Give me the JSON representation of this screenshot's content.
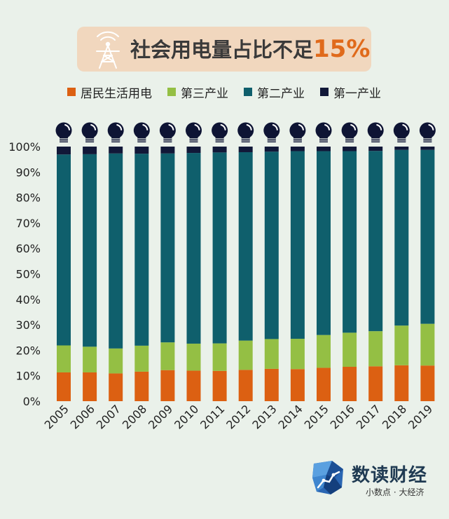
{
  "header": {
    "title_main": "社会用电量占比不足",
    "title_highlight": "15%"
  },
  "colors": {
    "residential": "#dc6012",
    "tertiary": "#94bf44",
    "secondary": "#0f5f6c",
    "primary": "#111838",
    "background": "#eaf1ea",
    "title_bg": "#f1d7be",
    "highlight": "#e06a1b"
  },
  "legend": [
    {
      "label": "居民生活用电",
      "color": "#dc6012"
    },
    {
      "label": "第三产业",
      "color": "#94bf44"
    },
    {
      "label": "第二产业",
      "color": "#0f5f6c"
    },
    {
      "label": "第一产业",
      "color": "#111838"
    }
  ],
  "icons": {
    "title": "transmission-tower-icon",
    "bar_top": "light-bulb-icon",
    "brand": "map-logo-icon"
  },
  "brand": {
    "name": "数读财经",
    "slogan": "小数点 · 大经济"
  },
  "chart_data": {
    "type": "bar",
    "stacked": true,
    "categories": [
      "2005",
      "2006",
      "2007",
      "2008",
      "2009",
      "2010",
      "2011",
      "2012",
      "2013",
      "2014",
      "2015",
      "2016",
      "2017",
      "2018",
      "2019"
    ],
    "series": [
      {
        "name": "居民生活用电",
        "values": [
          11.3,
          11.3,
          10.9,
          11.6,
          12.2,
          12.0,
          11.9,
          12.3,
          12.7,
          12.6,
          13.1,
          13.5,
          13.7,
          14.1,
          14.0
        ]
      },
      {
        "name": "第三产业",
        "values": [
          10.6,
          10.1,
          9.8,
          10.2,
          10.9,
          10.6,
          10.8,
          11.5,
          11.7,
          11.9,
          12.9,
          13.4,
          13.8,
          15.6,
          16.4
        ]
      },
      {
        "name": "第二产业",
        "values": [
          75.0,
          75.6,
          76.6,
          75.4,
          74.2,
          74.9,
          75.0,
          74.0,
          73.6,
          73.7,
          72.2,
          71.3,
          70.8,
          69.0,
          68.3
        ]
      },
      {
        "name": "第一产业",
        "values": [
          3.1,
          3.0,
          2.7,
          2.8,
          2.7,
          2.5,
          2.3,
          2.2,
          2.0,
          1.8,
          1.8,
          1.8,
          1.7,
          1.3,
          1.3
        ]
      }
    ],
    "y_ticks": [
      "0%",
      "10%",
      "20%",
      "30%",
      "40%",
      "50%",
      "60%",
      "70%",
      "80%",
      "90%",
      "100%"
    ],
    "ylim": [
      0,
      100
    ],
    "grid": false,
    "legend_position": "top"
  }
}
